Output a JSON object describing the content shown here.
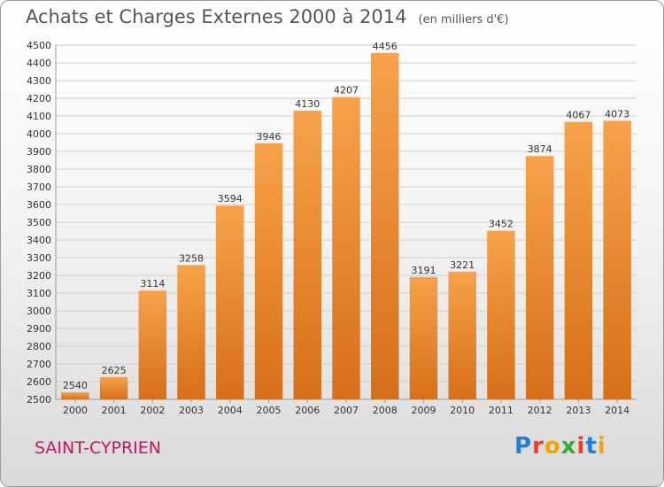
{
  "title": "Achats et Charges Externes 2000 à 2014",
  "unit": "(en milliers d'€)",
  "place": "SAINT-CYPRIEN",
  "logo": "Proxiti",
  "colors": {
    "bar": "#f0963a",
    "bar_dark": "#d9731e",
    "grid": "#cfcfcf",
    "axis_text": "#333333",
    "place": "#c2185b"
  },
  "chart_data": {
    "type": "bar",
    "title": "Achats et Charges Externes 2000 à 2014",
    "categories": [
      "2000",
      "2001",
      "2002",
      "2003",
      "2004",
      "2005",
      "2006",
      "2007",
      "2008",
      "2009",
      "2010",
      "2011",
      "2012",
      "2013",
      "2014"
    ],
    "values": [
      2540,
      2625,
      3114,
      3258,
      3594,
      3946,
      4130,
      4207,
      4456,
      3191,
      3221,
      3452,
      3874,
      4067,
      4073
    ],
    "ylim": [
      2500,
      4500
    ],
    "yticks": [
      2500,
      2600,
      2700,
      2800,
      2900,
      3000,
      3100,
      3200,
      3300,
      3400,
      3500,
      3600,
      3700,
      3800,
      3900,
      4000,
      4100,
      4200,
      4300,
      4400,
      4500
    ],
    "grid": true,
    "xlabel": "",
    "ylabel": ""
  }
}
